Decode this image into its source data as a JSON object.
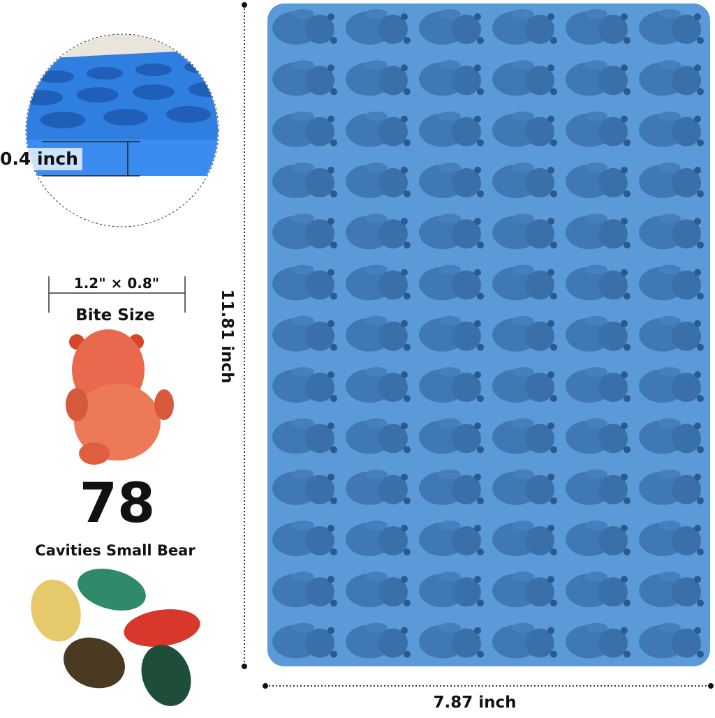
{
  "callouts": {
    "thickness": "0.4 inch",
    "bite_dimensions": "1.2\" × 0.8\"",
    "bite_label": "Bite Size",
    "cavity_count": "78",
    "cavity_label": "Cavities Small Bear"
  },
  "dimensions": {
    "height": "11.81 inch",
    "width": "7.87 inch"
  }
}
